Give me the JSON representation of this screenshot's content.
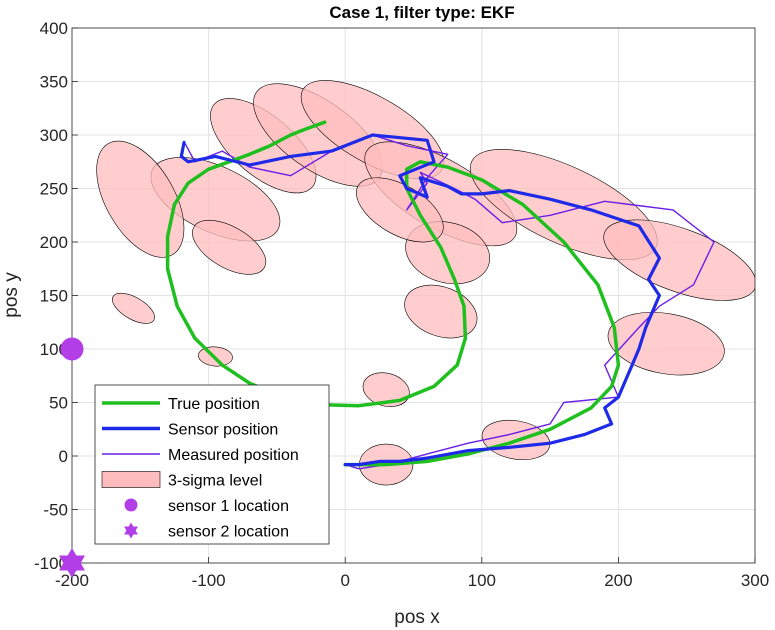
{
  "chart_data": {
    "type": "line",
    "title": "Case 1, filter type: EKF",
    "xlabel": "pos x",
    "ylabel": "pos y",
    "xlim": [
      -200,
      300
    ],
    "ylim": [
      -100,
      400
    ],
    "xticks": [
      -200,
      -100,
      0,
      100,
      200,
      300
    ],
    "yticks": [
      -100,
      -50,
      0,
      50,
      100,
      150,
      200,
      250,
      300,
      350,
      400
    ],
    "grid": true,
    "legend_position": "bottom-left",
    "colors": {
      "true_position": "#1fbf1f",
      "sensor_position": "#1f2ae8",
      "measured_position": "#6a1fe8",
      "sigma_fill": "#ffbcbc",
      "sensor_marker": "#b23ee8"
    },
    "legend": [
      {
        "label": "True position",
        "kind": "line-thick",
        "key": "true_position"
      },
      {
        "label": "Sensor position",
        "kind": "line-thick",
        "key": "sensor_position"
      },
      {
        "label": "Measured position",
        "kind": "line-thin",
        "key": "measured_position"
      },
      {
        "label": "3-sigma level",
        "kind": "patch",
        "key": "sigma_fill"
      },
      {
        "label": "sensor 1 location",
        "kind": "circle",
        "key": "sensor_marker"
      },
      {
        "label": "sensor 2 location",
        "kind": "hexagram",
        "key": "sensor_marker"
      }
    ],
    "series": [
      {
        "name": "True position",
        "key": "true_position",
        "x": [
          0,
          30,
          60,
          90,
          120,
          150,
          180,
          195,
          200,
          197,
          185,
          160,
          130,
          100,
          75,
          55,
          45,
          45,
          55,
          70,
          80,
          87,
          88,
          82,
          65,
          40,
          10,
          -20,
          -45,
          -70,
          -90,
          -110,
          -123,
          -130,
          -130,
          -125,
          -115,
          -100,
          -85,
          -70,
          -55,
          -40,
          -30,
          -15
        ],
        "y": [
          -8,
          -8,
          -5,
          2,
          12,
          25,
          45,
          65,
          85,
          120,
          160,
          200,
          235,
          258,
          270,
          275,
          268,
          250,
          225,
          195,
          165,
          140,
          110,
          85,
          65,
          52,
          47,
          48,
          55,
          68,
          85,
          110,
          140,
          175,
          205,
          235,
          255,
          268,
          275,
          282,
          290,
          300,
          305,
          312
        ]
      },
      {
        "name": "Sensor position",
        "key": "sensor_position",
        "x": [
          -118,
          -120,
          -115,
          -95,
          -70,
          -40,
          -10,
          20,
          60,
          65,
          40,
          45,
          60,
          55,
          75,
          85,
          100,
          120,
          150,
          180,
          215,
          230,
          222,
          230,
          225,
          220,
          215,
          210,
          205,
          200,
          190,
          195,
          175,
          150,
          120,
          90,
          60,
          40,
          25,
          10,
          0
        ],
        "y": [
          293,
          280,
          275,
          280,
          272,
          280,
          285,
          300,
          295,
          275,
          262,
          250,
          242,
          260,
          252,
          245,
          245,
          248,
          240,
          230,
          215,
          185,
          165,
          150,
          135,
          120,
          100,
          85,
          70,
          55,
          45,
          30,
          20,
          12,
          8,
          5,
          -2,
          -5,
          -5,
          -8,
          -8
        ]
      },
      {
        "name": "Measured position",
        "key": "measured_position",
        "x": [
          -118,
          -110,
          -90,
          -70,
          -40,
          -10,
          20,
          45,
          75,
          60,
          50,
          45,
          60,
          55,
          80,
          95,
          115,
          150,
          190,
          240,
          270,
          255,
          230,
          215,
          190,
          200,
          160,
          150,
          120,
          90,
          60,
          40,
          30,
          20,
          10,
          0
        ],
        "y": [
          294,
          275,
          285,
          270,
          262,
          285,
          300,
          290,
          282,
          260,
          240,
          230,
          255,
          265,
          250,
          240,
          218,
          225,
          238,
          230,
          200,
          160,
          140,
          120,
          85,
          55,
          50,
          30,
          20,
          12,
          2,
          -5,
          -8,
          -10,
          -12,
          -8
        ]
      }
    ],
    "ellipses": [
      {
        "cx": -95,
        "cy": 240,
        "rx": 24,
        "ry": 65,
        "angle": -65
      },
      {
        "cx": -60,
        "cy": 290,
        "rx": 22,
        "ry": 60,
        "angle": -50
      },
      {
        "cx": -20,
        "cy": 300,
        "rx": 25,
        "ry": 70,
        "angle": -55
      },
      {
        "cx": 20,
        "cy": 305,
        "rx": 24,
        "ry": 75,
        "angle": -60
      },
      {
        "cx": 70,
        "cy": 245,
        "rx": 25,
        "ry": 80,
        "angle": -60
      },
      {
        "cx": 160,
        "cy": 235,
        "rx": 28,
        "ry": 95,
        "angle": -65
      },
      {
        "cx": 75,
        "cy": 190,
        "rx": 22,
        "ry": 40,
        "angle": -75
      },
      {
        "cx": 245,
        "cy": 183,
        "rx": 23,
        "ry": 75,
        "angle": -70
      },
      {
        "cx": 70,
        "cy": 135,
        "rx": 18,
        "ry": 35,
        "angle": -70
      },
      {
        "cx": 235,
        "cy": 105,
        "rx": 22,
        "ry": 55,
        "angle": -80
      },
      {
        "cx": 30,
        "cy": 62,
        "rx": 12,
        "ry": 22,
        "angle": -75
      },
      {
        "cx": 125,
        "cy": 15,
        "rx": 14,
        "ry": 32,
        "angle": -80
      },
      {
        "cx": 30,
        "cy": -8,
        "rx": 15,
        "ry": 25,
        "angle": -90
      },
      {
        "cx": -95,
        "cy": 93,
        "rx": 7,
        "ry": 16,
        "angle": -85
      },
      {
        "cx": -155,
        "cy": 138,
        "rx": 8,
        "ry": 22,
        "angle": -60
      },
      {
        "cx": -85,
        "cy": 195,
        "rx": 15,
        "ry": 38,
        "angle": -60
      },
      {
        "cx": -150,
        "cy": 240,
        "rx": 25,
        "ry": 60,
        "angle": -30
      },
      {
        "cx": 40,
        "cy": 230,
        "rx": 18,
        "ry": 45,
        "angle": -60
      }
    ],
    "sensor_locations": [
      {
        "name": "sensor 1 location",
        "x": -200,
        "y": 100,
        "marker": "circle"
      },
      {
        "name": "sensor 2 location",
        "x": -200,
        "y": -100,
        "marker": "hexagram"
      }
    ]
  }
}
